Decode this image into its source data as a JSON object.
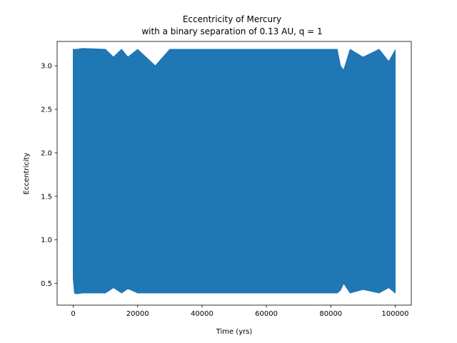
{
  "chart_data": {
    "type": "line",
    "title": "Eccentricity of Mercury",
    "subtitle": "with a binary separation of 0.13 AU, q = 1",
    "xlabel": "Time (yrs)",
    "ylabel": "Eccentricity",
    "xlim": [
      -5000,
      105000
    ],
    "ylim": [
      0.25,
      3.28
    ],
    "xticks": [
      0,
      20000,
      40000,
      60000,
      80000,
      100000
    ],
    "yticks": [
      0.5,
      1.0,
      1.5,
      2.0,
      2.5,
      3.0
    ],
    "xtick_labels": [
      "0",
      "20000",
      "40000",
      "60000",
      "80000",
      "100000"
    ],
    "ytick_labels": [
      "0.5",
      "1.0",
      "1.5",
      "2.0",
      "2.5",
      "3.0"
    ],
    "grid": false,
    "series": [
      {
        "color": "#1f77b4",
        "x_range": [
          0,
          100000
        ],
        "typical_min": 0.39,
        "typical_max": 3.19,
        "x": [
          0,
          400,
          900,
          3000,
          10000,
          12500,
          15000,
          17000,
          20000,
          25500,
          30000,
          45000,
          60000,
          75000,
          82000,
          83000,
          84000,
          86000,
          90000,
          95000,
          98000,
          100000
        ],
        "min": [
          0.56,
          0.39,
          0.38,
          0.39,
          0.39,
          0.45,
          0.39,
          0.44,
          0.39,
          0.39,
          0.39,
          0.39,
          0.39,
          0.39,
          0.39,
          0.42,
          0.5,
          0.39,
          0.43,
          0.39,
          0.45,
          0.39
        ],
        "max": [
          3.19,
          3.19,
          3.19,
          3.2,
          3.19,
          3.1,
          3.19,
          3.1,
          3.19,
          3.0,
          3.19,
          3.19,
          3.19,
          3.19,
          3.19,
          3.0,
          2.95,
          3.19,
          3.1,
          3.19,
          3.05,
          3.18
        ]
      }
    ]
  }
}
